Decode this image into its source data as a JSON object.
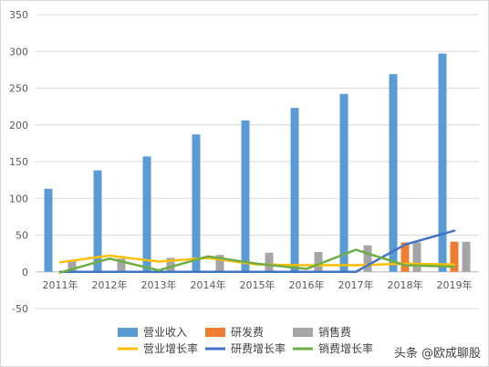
{
  "chart_data": {
    "type": "bar",
    "categories": [
      "2011年",
      "2012年",
      "2013年",
      "2014年",
      "2015年",
      "2016年",
      "2017年",
      "2018年",
      "2019年"
    ],
    "ylim": [
      -50,
      350
    ],
    "yticks": [
      -50,
      0,
      50,
      100,
      150,
      200,
      250,
      300,
      350
    ],
    "grid": true,
    "legend_position": "bottom",
    "bar_series": [
      {
        "name": "营业收入",
        "color": "#5b9bd5",
        "values": [
          113,
          138,
          157,
          187,
          206,
          223,
          242,
          269,
          297
        ]
      },
      {
        "name": "研发费",
        "color": "#ed7d31",
        "values": [
          0,
          0,
          0,
          0,
          0,
          0,
          0,
          40,
          41
        ]
      },
      {
        "name": "销售费",
        "color": "#a5a5a5",
        "values": [
          15,
          18,
          19,
          23,
          26,
          27,
          36,
          40,
          41
        ]
      }
    ],
    "line_series": [
      {
        "name": "营业增长率",
        "color": "#ffc000",
        "values": [
          13,
          22,
          14,
          19,
          10,
          9,
          9,
          11,
          10
        ]
      },
      {
        "name": "研费增长率",
        "color": "#4472c4",
        "values": [
          0,
          0,
          0,
          0,
          0,
          0,
          0,
          37,
          56
        ]
      },
      {
        "name": "销费增长率",
        "color": "#70ad47",
        "values": [
          -1,
          18,
          2,
          21,
          11,
          4,
          30,
          9,
          7
        ]
      }
    ]
  },
  "watermark": "头条 @欧成聊股"
}
